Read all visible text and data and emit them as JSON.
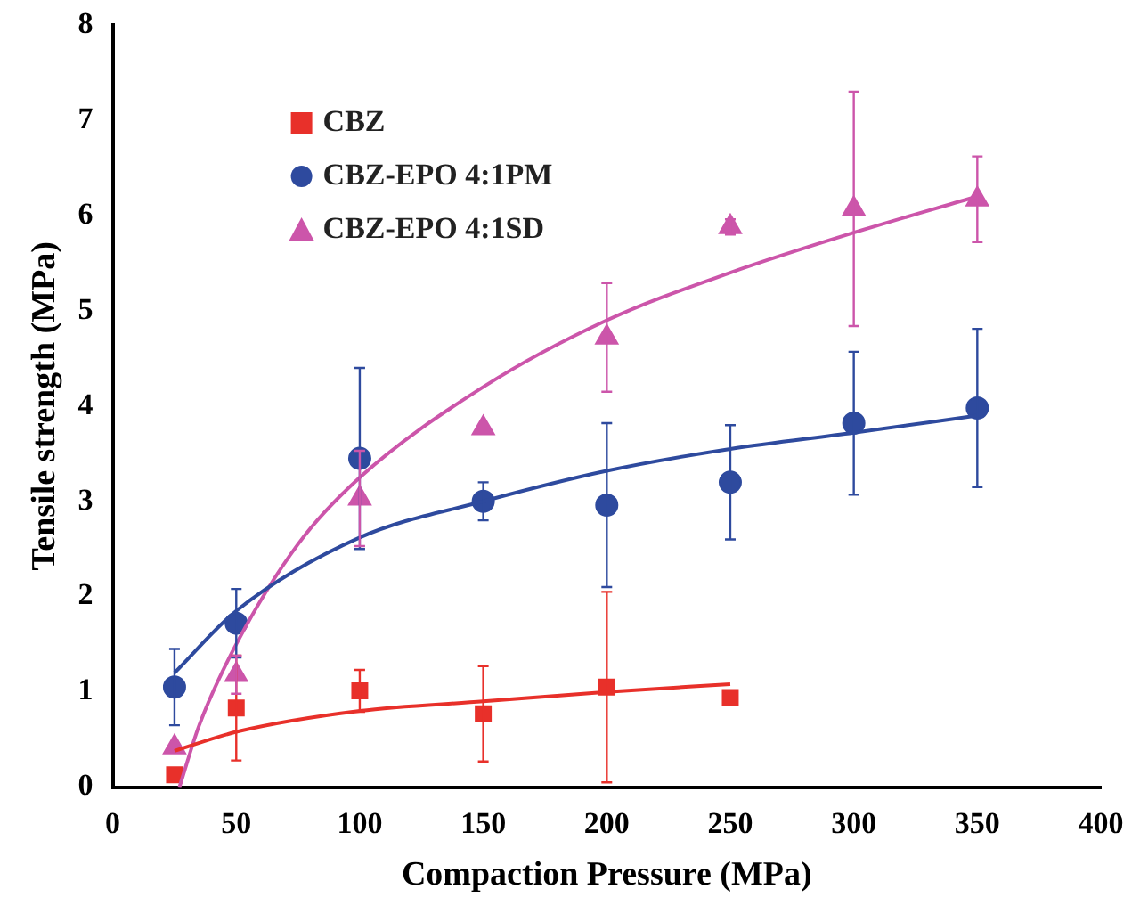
{
  "chart_data": {
    "type": "scatter",
    "xlabel": "Compaction Pressure (MPa)",
    "ylabel": "Tensile strength (MPa)",
    "xlim": [
      0,
      400
    ],
    "xticks": [
      0,
      50,
      100,
      150,
      200,
      250,
      300,
      350,
      400
    ],
    "ylim": [
      0,
      8
    ],
    "yticks": [
      0,
      1,
      2,
      3,
      4,
      5,
      6,
      7,
      8
    ],
    "grid": false,
    "legend": "top left",
    "series": [
      {
        "name": "CBZ",
        "marker": "square",
        "color": "#e8302a",
        "x": [
          25,
          50,
          100,
          150,
          200,
          250
        ],
        "values": [
          0.13,
          0.83,
          1.01,
          0.77,
          1.05,
          0.94
        ],
        "errors": [
          null,
          0.55,
          0.22,
          0.5,
          1.0,
          null
        ]
      },
      {
        "name": "CBZ-EPO 4:1PM",
        "marker": "circle",
        "color": "#2e4a9e",
        "x": [
          25,
          50,
          100,
          150,
          200,
          250,
          300,
          350
        ],
        "values": [
          1.05,
          1.72,
          3.45,
          3.0,
          2.96,
          3.2,
          3.82,
          3.98
        ],
        "errors": [
          0.4,
          0.36,
          0.95,
          0.2,
          0.86,
          0.6,
          0.75,
          0.83
        ]
      },
      {
        "name": "CBZ-EPO 4:1SD",
        "marker": "triangle",
        "color": "#cc55aa",
        "x": [
          25,
          50,
          100,
          150,
          200,
          250,
          300,
          350
        ],
        "values": [
          0.42,
          1.18,
          3.03,
          3.77,
          4.72,
          5.88,
          6.07,
          6.17
        ],
        "errors": [
          null,
          0.2,
          0.5,
          null,
          0.57,
          0.08,
          1.23,
          0.45
        ]
      },
      {
        "type": "line",
        "marker": "none",
        "color": "#e8302a",
        "x": [
          25,
          50,
          100,
          150,
          200,
          250
        ],
        "values": [
          0.38,
          0.58,
          0.8,
          0.9,
          1.0,
          1.08
        ]
      },
      {
        "type": "line",
        "marker": "none",
        "color": "#2e4a9e",
        "x": [
          25,
          50,
          100,
          150,
          200,
          250,
          300,
          350
        ],
        "values": [
          1.2,
          1.85,
          2.62,
          3.0,
          3.32,
          3.55,
          3.72,
          3.9
        ]
      },
      {
        "type": "line",
        "marker": "none",
        "color": "#cc55aa",
        "x": [
          27,
          35,
          50,
          75,
          100,
          150,
          200,
          250,
          300,
          350
        ],
        "values": [
          0,
          0.65,
          1.5,
          2.55,
          3.25,
          4.2,
          4.9,
          5.4,
          5.82,
          6.2
        ]
      }
    ]
  }
}
